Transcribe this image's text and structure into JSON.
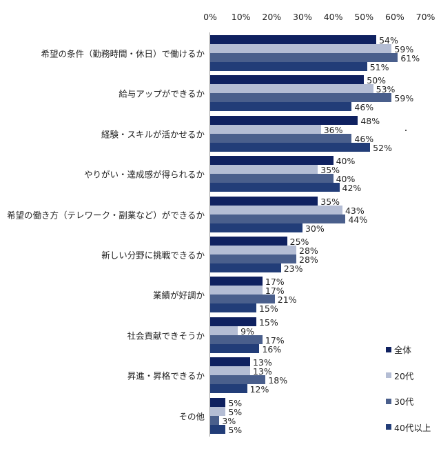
{
  "chart_data": {
    "type": "bar",
    "orientation": "horizontal",
    "title": "",
    "xlabel": "",
    "ylabel": "",
    "xlim": [
      0,
      70
    ],
    "x_ticks": [
      "0%",
      "10%",
      "20%",
      "30%",
      "40%",
      "50%",
      "60%",
      "70%"
    ],
    "x_axis_position": "top",
    "grid": false,
    "legend_position": "right-bottom",
    "value_suffix": "%",
    "categories": [
      "希望の条件（勤務時間・休日）で働けるか",
      "給与アップができるか",
      "経験・スキルが活かせるか",
      "やりがい・達成感が得られるか",
      "希望の働き方（テレワーク・副業など）ができるか",
      "新しい分野に挑戦できるか",
      "業績が好調か",
      "社会貢献できそうか",
      "昇進・昇格できるか",
      "その他"
    ],
    "series": [
      {
        "name": "全体",
        "color": "#0f2160",
        "values": [
          54,
          50,
          48,
          40,
          35,
          25,
          17,
          15,
          13,
          5
        ]
      },
      {
        "name": "20代",
        "color": "#b4bdd4",
        "values": [
          59,
          53,
          36,
          35,
          43,
          28,
          17,
          9,
          13,
          5
        ]
      },
      {
        "name": "30代",
        "color": "#4a5f8c",
        "values": [
          61,
          59,
          46,
          40,
          44,
          28,
          21,
          17,
          18,
          3
        ]
      },
      {
        "name": "40代以上",
        "color": "#223d78",
        "values": [
          51,
          46,
          52,
          42,
          30,
          23,
          15,
          16,
          12,
          5
        ]
      }
    ]
  }
}
